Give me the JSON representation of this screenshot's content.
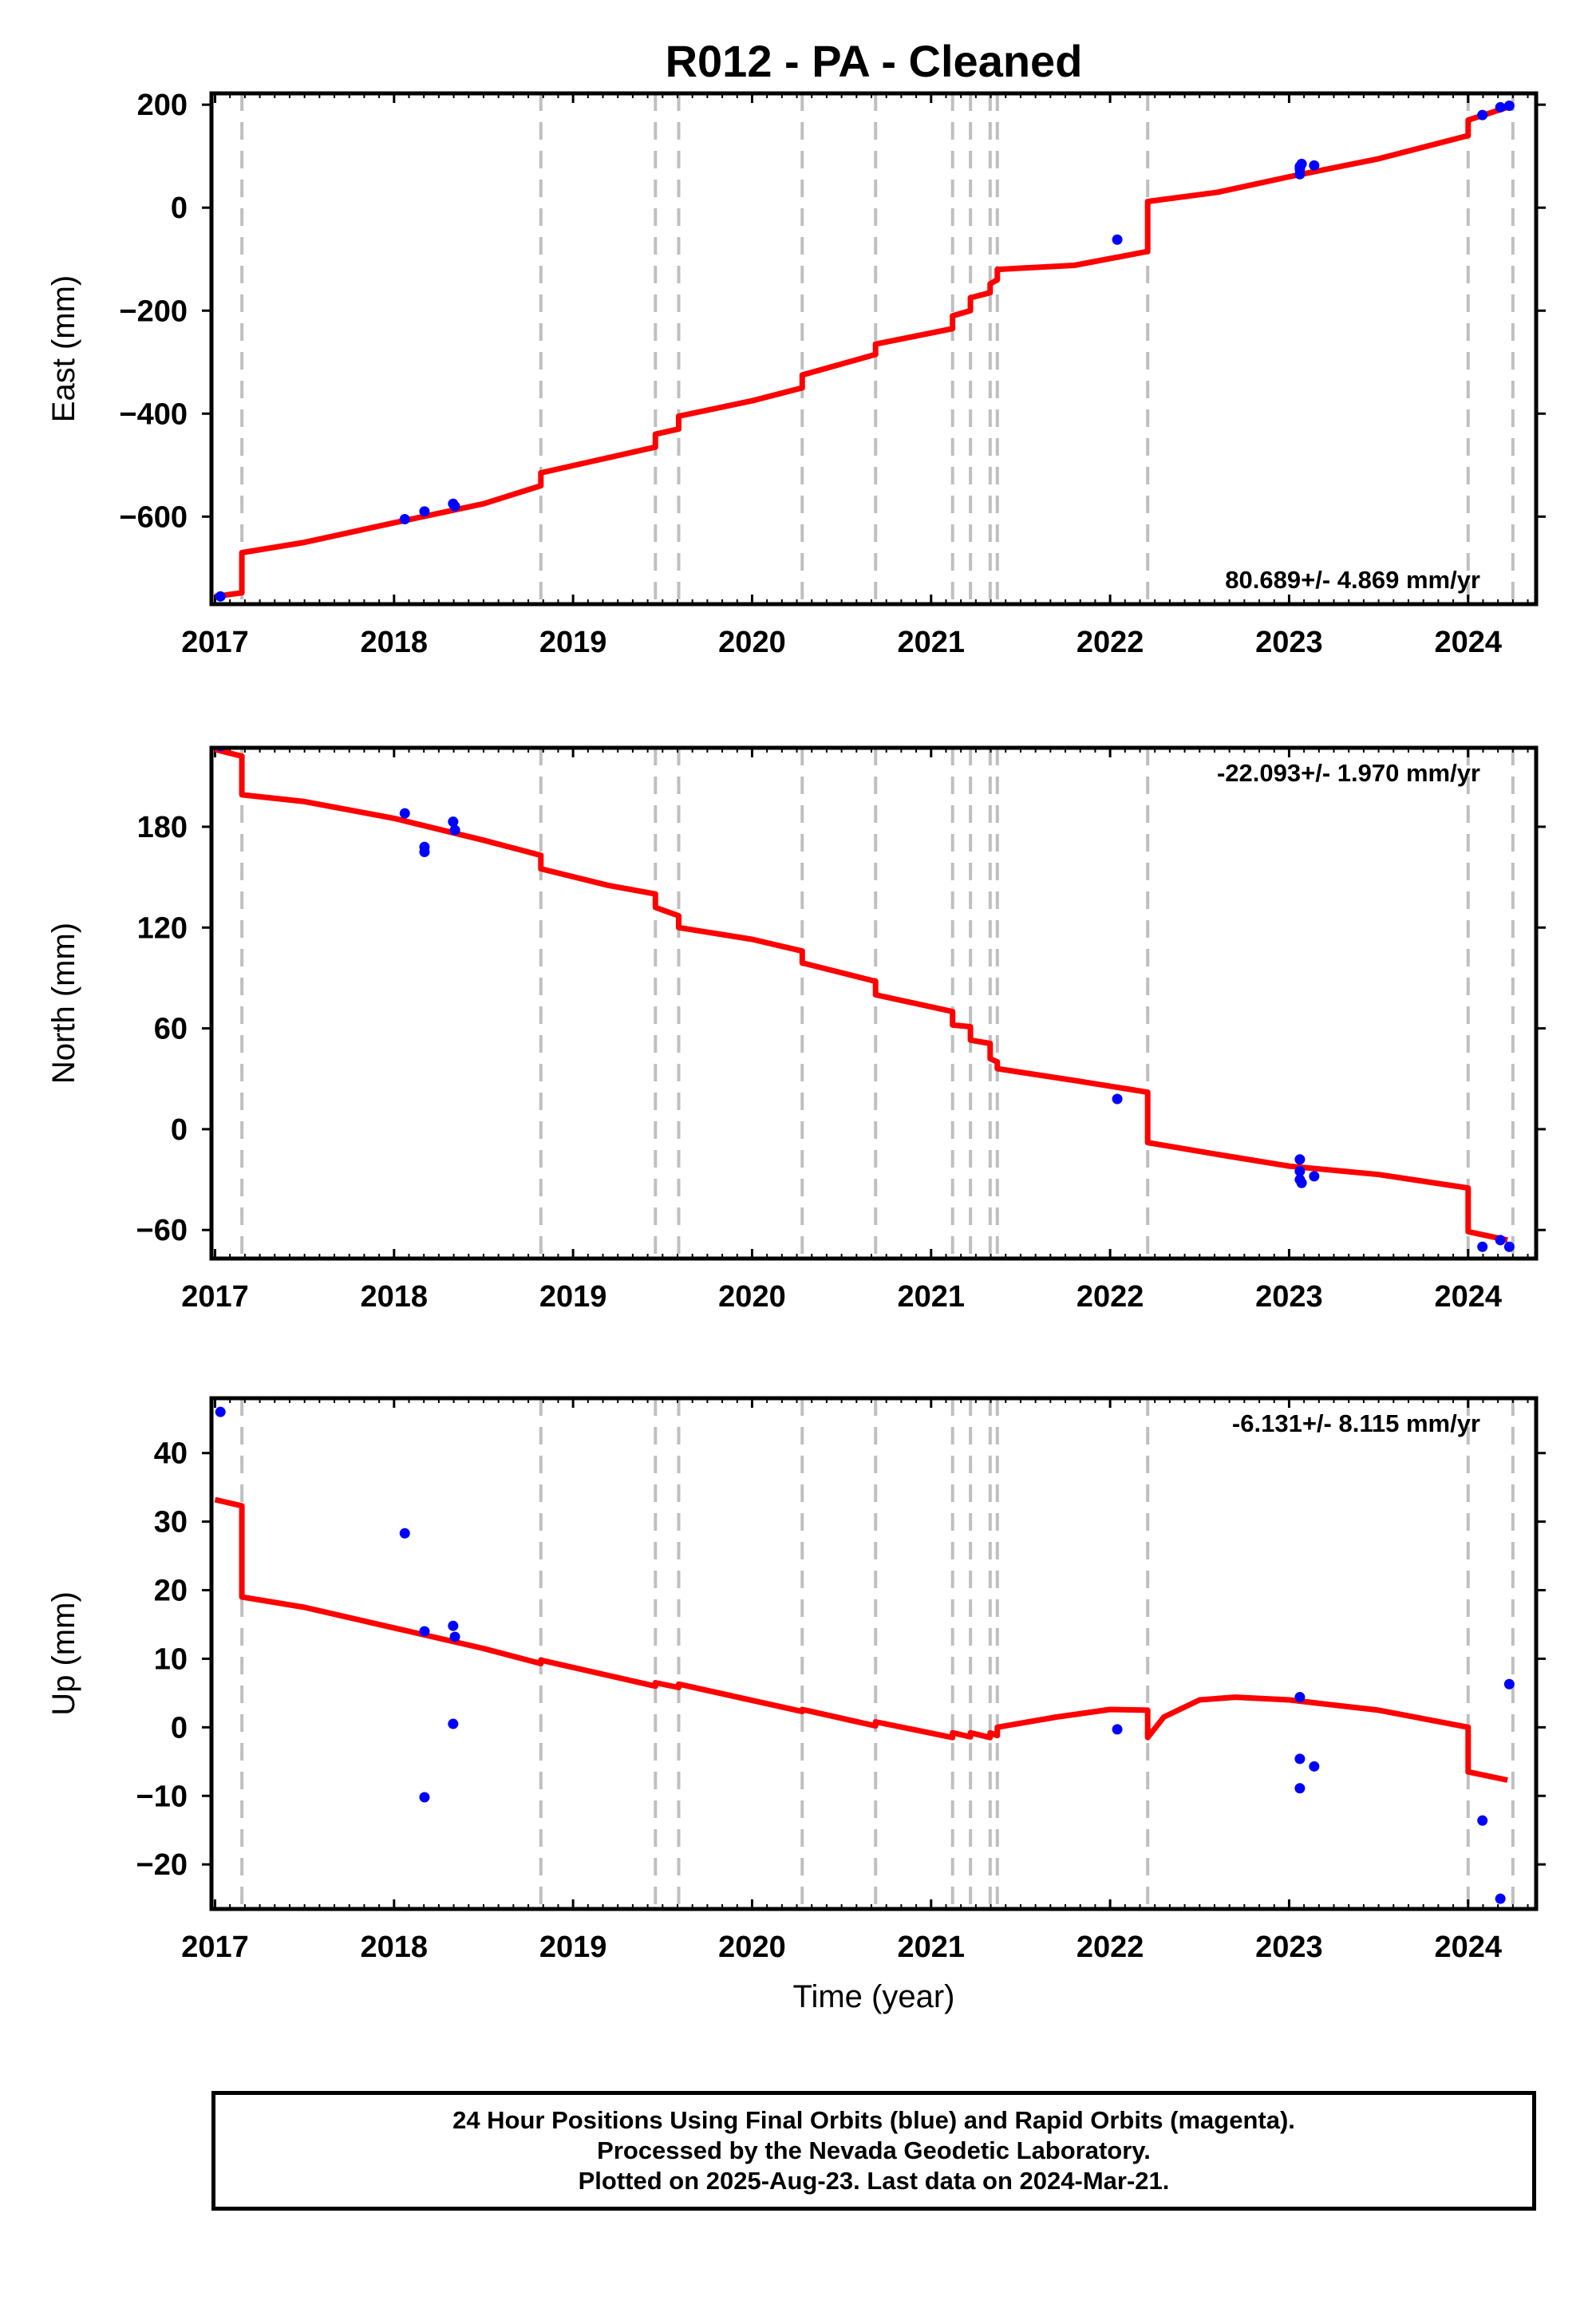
{
  "title": "R012  - PA - Cleaned",
  "colors": {
    "model": "#ff0000",
    "final_orbits": "#0000ff",
    "steps": "#bfbfbf"
  },
  "chart_data": [
    {
      "type": "line",
      "ylabel": "East (mm)",
      "xlabel": "",
      "xlim": [
        2016.98,
        2024.38
      ],
      "ylim": [
        -770,
        222
      ],
      "xticks": [
        2017,
        2018,
        2019,
        2020,
        2021,
        2022,
        2023,
        2024
      ],
      "yticks": [
        -600,
        -400,
        -200,
        0,
        200
      ],
      "rate": "80.689+/- 4.869 mm/yr",
      "rate_position": "bottom-right",
      "steps": [
        2017.15,
        2018.82,
        2019.46,
        2019.59,
        2020.28,
        2020.69,
        2021.12,
        2021.22,
        2021.33,
        2021.37,
        2022.21,
        2024.0,
        2024.25
      ],
      "model": [
        [
          2017.0,
          -755
        ],
        [
          2017.15,
          -748
        ],
        [
          2017.15,
          -670
        ],
        [
          2017.5,
          -650
        ],
        [
          2018.0,
          -612
        ],
        [
          2018.5,
          -575
        ],
        [
          2018.82,
          -540
        ],
        [
          2018.82,
          -515
        ],
        [
          2019.46,
          -465
        ],
        [
          2019.46,
          -440
        ],
        [
          2019.59,
          -430
        ],
        [
          2019.59,
          -405
        ],
        [
          2020.0,
          -375
        ],
        [
          2020.28,
          -350
        ],
        [
          2020.28,
          -325
        ],
        [
          2020.69,
          -285
        ],
        [
          2020.69,
          -265
        ],
        [
          2021.12,
          -235
        ],
        [
          2021.12,
          -210
        ],
        [
          2021.22,
          -200
        ],
        [
          2021.22,
          -175
        ],
        [
          2021.33,
          -165
        ],
        [
          2021.33,
          -148
        ],
        [
          2021.37,
          -140
        ],
        [
          2021.37,
          -120
        ],
        [
          2021.8,
          -112
        ],
        [
          2022.21,
          -85
        ],
        [
          2022.21,
          12
        ],
        [
          2022.6,
          30
        ],
        [
          2023.0,
          60
        ],
        [
          2023.5,
          95
        ],
        [
          2024.0,
          140
        ],
        [
          2024.0,
          170
        ],
        [
          2024.22,
          195
        ]
      ],
      "points": [
        [
          2017.03,
          -755
        ],
        [
          2018.06,
          -605
        ],
        [
          2018.17,
          -590
        ],
        [
          2018.33,
          -575
        ],
        [
          2018.34,
          -580
        ],
        [
          2022.04,
          -62
        ],
        [
          2023.06,
          65
        ],
        [
          2023.06,
          75
        ],
        [
          2023.06,
          80
        ],
        [
          2023.07,
          85
        ],
        [
          2023.14,
          82
        ],
        [
          2024.08,
          180
        ],
        [
          2024.18,
          195
        ],
        [
          2024.23,
          198
        ]
      ]
    },
    {
      "type": "line",
      "ylabel": "North (mm)",
      "xlabel": "",
      "xlim": [
        2016.98,
        2024.38
      ],
      "ylim": [
        -77,
        227
      ],
      "xticks": [
        2017,
        2018,
        2019,
        2020,
        2021,
        2022,
        2023,
        2024
      ],
      "yticks": [
        -60,
        0,
        60,
        120,
        180
      ],
      "rate": "-22.093+/- 1.970 mm/yr",
      "rate_position": "top-right",
      "steps": [
        2017.15,
        2018.82,
        2019.46,
        2019.59,
        2020.28,
        2020.69,
        2021.12,
        2021.22,
        2021.33,
        2021.37,
        2022.21,
        2024.0,
        2024.25
      ],
      "model": [
        [
          2017.0,
          226
        ],
        [
          2017.15,
          222
        ],
        [
          2017.15,
          199
        ],
        [
          2017.5,
          195
        ],
        [
          2018.0,
          185
        ],
        [
          2018.5,
          172
        ],
        [
          2018.82,
          163
        ],
        [
          2018.82,
          155
        ],
        [
          2019.2,
          145
        ],
        [
          2019.46,
          140
        ],
        [
          2019.46,
          132
        ],
        [
          2019.59,
          127
        ],
        [
          2019.59,
          120
        ],
        [
          2020.0,
          113
        ],
        [
          2020.28,
          106
        ],
        [
          2020.28,
          99
        ],
        [
          2020.69,
          88
        ],
        [
          2020.69,
          80
        ],
        [
          2021.12,
          70
        ],
        [
          2021.12,
          62
        ],
        [
          2021.22,
          61
        ],
        [
          2021.22,
          53
        ],
        [
          2021.33,
          51
        ],
        [
          2021.33,
          42
        ],
        [
          2021.37,
          40
        ],
        [
          2021.37,
          36
        ],
        [
          2021.8,
          29
        ],
        [
          2022.21,
          22
        ],
        [
          2022.21,
          -8
        ],
        [
          2022.6,
          -15
        ],
        [
          2023.0,
          -22
        ],
        [
          2023.5,
          -27
        ],
        [
          2024.0,
          -35
        ],
        [
          2024.0,
          -61
        ],
        [
          2024.22,
          -66
        ]
      ],
      "points": [
        [
          2017.03,
          228
        ],
        [
          2018.06,
          188
        ],
        [
          2018.17,
          168
        ],
        [
          2018.17,
          165
        ],
        [
          2018.33,
          183
        ],
        [
          2018.34,
          178
        ],
        [
          2022.04,
          18
        ],
        [
          2023.06,
          -18
        ],
        [
          2023.06,
          -25
        ],
        [
          2023.06,
          -30
        ],
        [
          2023.07,
          -32
        ],
        [
          2023.14,
          -28
        ],
        [
          2024.08,
          -70
        ],
        [
          2024.18,
          -66
        ],
        [
          2024.23,
          -70
        ]
      ]
    },
    {
      "type": "line",
      "ylabel": "Up (mm)",
      "xlabel": "Time (year)",
      "xlim": [
        2016.98,
        2024.38
      ],
      "ylim": [
        -26.5,
        48
      ],
      "xticks": [
        2017,
        2018,
        2019,
        2020,
        2021,
        2022,
        2023,
        2024
      ],
      "yticks": [
        -20,
        -10,
        0,
        10,
        20,
        30,
        40
      ],
      "rate": "-6.131+/- 8.115 mm/yr",
      "rate_position": "top-right",
      "steps": [
        2017.15,
        2018.82,
        2019.46,
        2019.59,
        2020.28,
        2020.69,
        2021.12,
        2021.22,
        2021.33,
        2021.37,
        2022.21,
        2024.0,
        2024.25
      ],
      "model": [
        [
          2017.0,
          33.2
        ],
        [
          2017.15,
          32.3
        ],
        [
          2017.15,
          19
        ],
        [
          2017.5,
          17.5
        ],
        [
          2018.0,
          14.5
        ],
        [
          2018.5,
          11.5
        ],
        [
          2018.82,
          9.3
        ],
        [
          2018.82,
          9.8
        ],
        [
          2019.46,
          6
        ],
        [
          2019.46,
          6.5
        ],
        [
          2019.59,
          5.8
        ],
        [
          2019.59,
          6.3
        ],
        [
          2020.28,
          2.3
        ],
        [
          2020.28,
          2.6
        ],
        [
          2020.69,
          0.2
        ],
        [
          2020.69,
          0.8
        ],
        [
          2021.12,
          -1.5
        ],
        [
          2021.12,
          -0.8
        ],
        [
          2021.22,
          -1.4
        ],
        [
          2021.22,
          -0.8
        ],
        [
          2021.33,
          -1.5
        ],
        [
          2021.33,
          -0.8
        ],
        [
          2021.37,
          -1.2
        ],
        [
          2021.37,
          0
        ],
        [
          2021.7,
          1.5
        ],
        [
          2022.0,
          2.6
        ],
        [
          2022.21,
          2.5
        ],
        [
          2022.21,
          -1.5
        ],
        [
          2022.3,
          1.5
        ],
        [
          2022.5,
          4
        ],
        [
          2022.7,
          4.4
        ],
        [
          2023.0,
          4
        ],
        [
          2023.5,
          2.5
        ],
        [
          2024.0,
          0
        ],
        [
          2024.0,
          -6.5
        ],
        [
          2024.22,
          -7.7
        ]
      ],
      "points": [
        [
          2017.03,
          46
        ],
        [
          2018.06,
          28.3
        ],
        [
          2018.17,
          14
        ],
        [
          2018.17,
          -10.2
        ],
        [
          2018.33,
          14.8
        ],
        [
          2018.34,
          13.2
        ],
        [
          2018.33,
          0.5
        ],
        [
          2022.04,
          -0.3
        ],
        [
          2023.06,
          4.4
        ],
        [
          2023.06,
          -4.6
        ],
        [
          2023.06,
          -8.9
        ],
        [
          2023.14,
          -5.7
        ],
        [
          2024.08,
          -13.6
        ],
        [
          2024.18,
          -25
        ],
        [
          2024.23,
          6.3
        ]
      ]
    }
  ],
  "footer": {
    "line1": "24 Hour Positions Using Final Orbits (blue) and Rapid Orbits (magenta).",
    "line2": "Processed by the Nevada Geodetic Laboratory.",
    "line3": "Plotted on 2025-Aug-23. Last data on 2024-Mar-21."
  }
}
